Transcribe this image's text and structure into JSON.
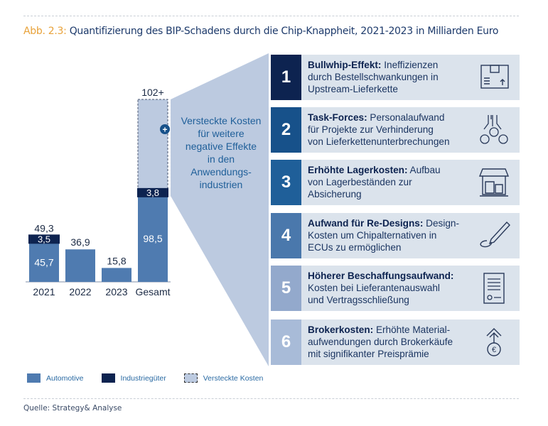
{
  "title": {
    "prefix": "Abb. 2.3:",
    "text": "Quantifizierung des BIP-Schadens durch die Chip-Knappheit, 2021-2023 in Milliarden Euro"
  },
  "chart_data": {
    "type": "bar",
    "stacked": true,
    "categories": [
      "2021",
      "2022",
      "2023",
      "Gesamt"
    ],
    "series": [
      {
        "name": "Automotive",
        "color": "#4f7bb0",
        "values": [
          45.7,
          36.9,
          15.8,
          98.5
        ]
      },
      {
        "name": "Industriegüter",
        "color": "#0d2350",
        "values": [
          3.5,
          null,
          null,
          3.8
        ]
      },
      {
        "name": "Versteckte Kosten",
        "color": "#bccae0",
        "values": [
          null,
          null,
          null,
          null
        ]
      }
    ],
    "data_labels": {
      "totals": [
        "49,3",
        "36,9",
        "15,8",
        "102+"
      ],
      "automotive": [
        "45,7",
        "",
        "",
        "98,5"
      ],
      "industrie": [
        "3,5",
        "",
        "",
        "3,8"
      ]
    },
    "ylim": [
      0,
      110
    ],
    "grid": false,
    "legend_position": "bottom-left",
    "annotation": "Versteckte Kosten für weitere negative Effekte in den Anwendungs-industrien",
    "annotation_lines": [
      "Versteckte Kosten",
      "für weitere",
      "negative Effekte",
      "in den",
      "Anwendungs-",
      "industrien"
    ]
  },
  "cards": [
    {
      "num": "1",
      "bold": "Bullwhip-Effekt:",
      "lines": [
        " Ineffizienzen",
        "durch Bestellschwankungen in",
        "Upstream-Lieferkette"
      ],
      "icon": "box-icon",
      "color": "#0d2350"
    },
    {
      "num": "2",
      "bold": "Task-Forces:",
      "lines": [
        " Personalaufwand",
        "für Projekte zur Verhinderung",
        "von Lieferkettenunterbrechungen"
      ],
      "icon": "team-icon",
      "color": "#17518a"
    },
    {
      "num": "3",
      "bold": "Erhöhte Lagerkosten:",
      "lines": [
        " Aufbau",
        "von Lagerbeständen zur",
        "Absicherung"
      ],
      "icon": "warehouse-icon",
      "color": "#1f5f99"
    },
    {
      "num": "4",
      "bold": "Aufwand für Re-Designs:",
      "lines": [
        " Design-",
        "Kosten um Chipalternativen in",
        "ECUs zu ermöglichen"
      ],
      "icon": "pencil-icon",
      "color": "#4a78ac"
    },
    {
      "num": "5",
      "bold": "Höherer Beschaffungsaufwand:",
      "lines": [
        "",
        "Kosten bei Lieferantenauswahl",
        "und Vertragsschließung"
      ],
      "icon": "contract-icon",
      "color": "#93a9cc"
    },
    {
      "num": "6",
      "bold": "Brokerkosten:",
      "lines": [
        " Erhöhte Material-",
        "aufwendungen durch Brokerkäufe",
        "mit signifikanter Preisprämie"
      ],
      "icon": "euro-up-icon",
      "color": "#a8bbd8"
    }
  ],
  "legend": [
    "Automotive",
    "Industriegüter",
    "Versteckte Kosten"
  ],
  "source": "Quelle: Strategy& Analyse"
}
